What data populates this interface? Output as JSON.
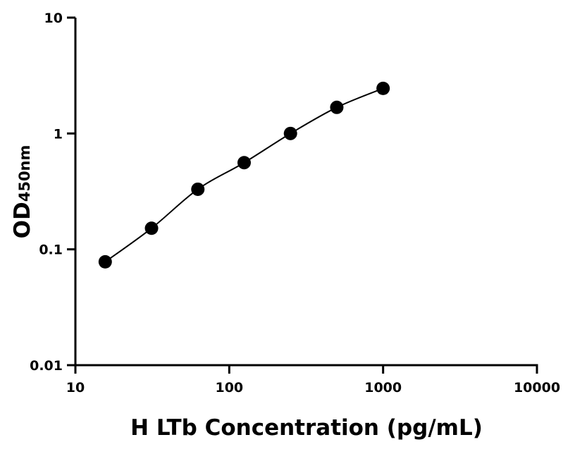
{
  "chart_data": {
    "type": "scatter",
    "title": "",
    "xlabel": "H LTb Concentration (pg/mL)",
    "ylabel_main": "OD",
    "ylabel_sub": "450nm",
    "x_scale": "log",
    "y_scale": "log",
    "xlim": [
      10,
      10000
    ],
    "ylim": [
      0.01,
      10
    ],
    "x_ticks": [
      10,
      100,
      1000,
      10000
    ],
    "x_tick_labels": [
      "10",
      "100",
      "1000",
      "10000"
    ],
    "y_ticks": [
      0.01,
      0.1,
      1,
      10
    ],
    "y_tick_labels": [
      "0.01",
      "0.1",
      "1",
      "10"
    ],
    "grid": false,
    "fit_curve": true,
    "series": [
      {
        "x": [
          15.625,
          31.25,
          62.5,
          125,
          250,
          500,
          1000
        ],
        "y": [
          0.078,
          0.152,
          0.33,
          0.56,
          1.0,
          1.68,
          2.45
        ]
      }
    ],
    "colors": {
      "marker": "#000000",
      "line": "#000000"
    }
  }
}
